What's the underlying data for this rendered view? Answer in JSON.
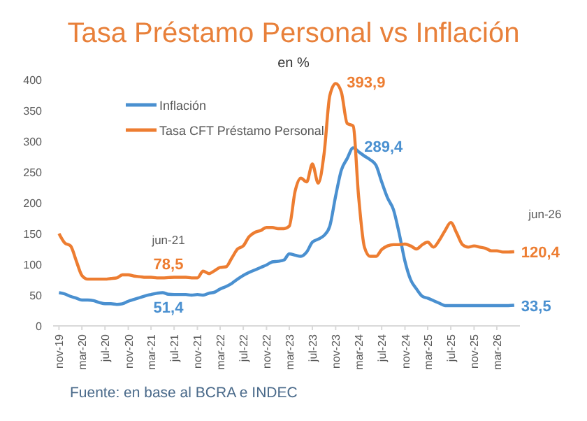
{
  "chart_data": {
    "type": "line",
    "title": "Tasa Préstamo Personal vs Inflación",
    "subtitle": "en %",
    "x": [
      "2019-11",
      "2019-12",
      "2020-01",
      "2020-02",
      "2020-03",
      "2020-04",
      "2020-05",
      "2020-06",
      "2020-07",
      "2020-08",
      "2020-09",
      "2020-10",
      "2020-11",
      "2020-12",
      "2021-01",
      "2021-02",
      "2021-03",
      "2021-04",
      "2021-05",
      "2021-06",
      "2021-07",
      "2021-08",
      "2021-09",
      "2021-10",
      "2021-11",
      "2021-12",
      "2022-01",
      "2022-02",
      "2022-03",
      "2022-04",
      "2022-05",
      "2022-06",
      "2022-07",
      "2022-08",
      "2022-09",
      "2022-10",
      "2022-11",
      "2022-12",
      "2023-01",
      "2023-02",
      "2023-03",
      "2023-04",
      "2023-05",
      "2023-06",
      "2023-07",
      "2023-08",
      "2023-09",
      "2023-10",
      "2023-11",
      "2023-12",
      "2024-01",
      "2024-02",
      "2024-03",
      "2024-04",
      "2024-05",
      "2024-06",
      "2024-07",
      "2024-08",
      "2024-09",
      "2024-10",
      "2024-11",
      "2024-12",
      "2025-01",
      "2025-02",
      "2025-03",
      "2025-04",
      "2025-05",
      "2025-06",
      "2025-07",
      "2025-08",
      "2025-09",
      "2025-10",
      "2025-11",
      "2025-12",
      "2026-01",
      "2026-02",
      "2026-03",
      "2026-04",
      "2026-05",
      "2026-06"
    ],
    "series": [
      {
        "name": "Inflación",
        "color": "#4a90d0",
        "values": [
          54,
          52,
          48,
          45,
          42,
          42,
          41,
          38,
          36,
          36,
          35,
          36,
          40,
          43,
          46,
          49,
          51,
          53,
          54,
          51.4,
          51,
          51,
          51,
          50,
          51,
          50,
          53,
          55,
          60,
          64,
          69,
          76,
          82,
          87,
          91,
          95,
          99,
          104,
          105,
          107,
          117,
          115,
          113,
          120,
          136,
          141,
          147,
          162,
          211,
          253,
          272,
          289.4,
          283,
          276,
          270,
          261,
          234,
          208,
          189,
          151,
          105,
          75,
          60,
          48,
          45,
          41,
          37,
          33,
          33,
          33,
          33,
          33,
          33,
          33,
          33,
          33,
          33,
          33,
          33,
          33.5
        ],
        "value_labels": [
          null,
          null,
          null,
          null,
          null,
          null,
          null,
          null,
          null,
          null,
          null,
          null,
          null,
          null,
          null,
          null,
          null,
          null,
          null,
          "51,4",
          null,
          null,
          null,
          null,
          null,
          null,
          null,
          null,
          null,
          null,
          null,
          null,
          null,
          null,
          null,
          null,
          null,
          null,
          null,
          null,
          null,
          null,
          null,
          null,
          null,
          null,
          null,
          null,
          null,
          null,
          null,
          "289,4",
          null,
          null,
          null,
          null,
          null,
          null,
          null,
          null,
          null,
          null,
          null,
          null,
          null,
          null,
          null,
          null,
          null,
          null,
          null,
          null,
          null,
          null,
          null,
          null,
          null,
          null,
          null,
          "33,5"
        ]
      },
      {
        "name": "Tasa CFT Préstamo Personal",
        "color": "#ed7d31",
        "values": [
          150,
          135,
          130,
          105,
          82,
          76,
          76,
          76,
          76,
          77,
          78,
          83,
          83,
          81,
          80,
          79,
          79,
          78,
          78,
          78.5,
          79,
          79,
          79,
          78,
          78,
          89,
          85,
          90,
          95,
          96,
          110,
          125,
          130,
          145,
          152,
          155,
          160,
          160,
          158,
          158,
          162,
          219,
          240,
          234,
          263,
          232,
          280,
          374,
          393.9,
          380,
          329,
          325,
          211,
          128,
          113,
          113,
          124,
          130,
          132,
          132,
          133,
          130,
          125,
          132,
          136,
          128,
          139,
          155,
          168,
          151,
          132,
          128,
          130,
          128,
          126,
          122,
          122,
          120,
          120,
          120.4
        ],
        "value_labels": [
          null,
          null,
          null,
          null,
          null,
          null,
          null,
          null,
          null,
          null,
          null,
          null,
          null,
          null,
          null,
          null,
          null,
          null,
          null,
          "78,5",
          null,
          null,
          null,
          null,
          null,
          null,
          null,
          null,
          null,
          null,
          null,
          null,
          null,
          null,
          null,
          null,
          null,
          null,
          null,
          null,
          null,
          null,
          null,
          null,
          null,
          null,
          null,
          null,
          "393,9",
          null,
          null,
          null,
          null,
          null,
          null,
          null,
          null,
          null,
          null,
          null,
          null,
          null,
          null,
          null,
          null,
          null,
          null,
          null,
          null,
          null,
          null,
          null,
          null,
          null,
          null,
          null,
          null,
          null,
          null,
          "120,4"
        ]
      }
    ],
    "xlim": [
      "2019-10",
      "2026-07"
    ],
    "xticks": [
      {
        "value": "2019-11",
        "label": "nov-19"
      },
      {
        "value": "2020-03",
        "label": "mar-20"
      },
      {
        "value": "2020-07",
        "label": "jul-20"
      },
      {
        "value": "2020-11",
        "label": "nov-20"
      },
      {
        "value": "2021-03",
        "label": "mar-21"
      },
      {
        "value": "2021-07",
        "label": "jul-21"
      },
      {
        "value": "2021-11",
        "label": "nov-21"
      },
      {
        "value": "2022-03",
        "label": "mar-22"
      },
      {
        "value": "2022-07",
        "label": "jul-22"
      },
      {
        "value": "2022-11",
        "label": "nov-22"
      },
      {
        "value": "2023-03",
        "label": "mar-23"
      },
      {
        "value": "2023-07",
        "label": "jul-23"
      },
      {
        "value": "2023-11",
        "label": "nov-23"
      },
      {
        "value": "2024-03",
        "label": "mar-24"
      },
      {
        "value": "2024-07",
        "label": "jul-24"
      },
      {
        "value": "2024-11",
        "label": "nov-24"
      },
      {
        "value": "2025-03",
        "label": "mar-25"
      },
      {
        "value": "2025-07",
        "label": "jul-25"
      },
      {
        "value": "2025-11",
        "label": "nov-25"
      },
      {
        "value": "2026-03",
        "label": "mar-26"
      }
    ],
    "ylim": [
      0,
      400
    ],
    "yticks": [
      0,
      50,
      100,
      150,
      200,
      250,
      300,
      350,
      400
    ],
    "grid": false,
    "legend": "top left",
    "marker": "none",
    "line_style": "solid",
    "annotations": [
      {
        "text": "jun-21",
        "x": "2021-06",
        "y": 78.5
      },
      {
        "text": "jun-26",
        "x": "2026-06",
        "y": 120.4
      },
      "Fuente: en base al BCRA e INDEC"
    ]
  }
}
